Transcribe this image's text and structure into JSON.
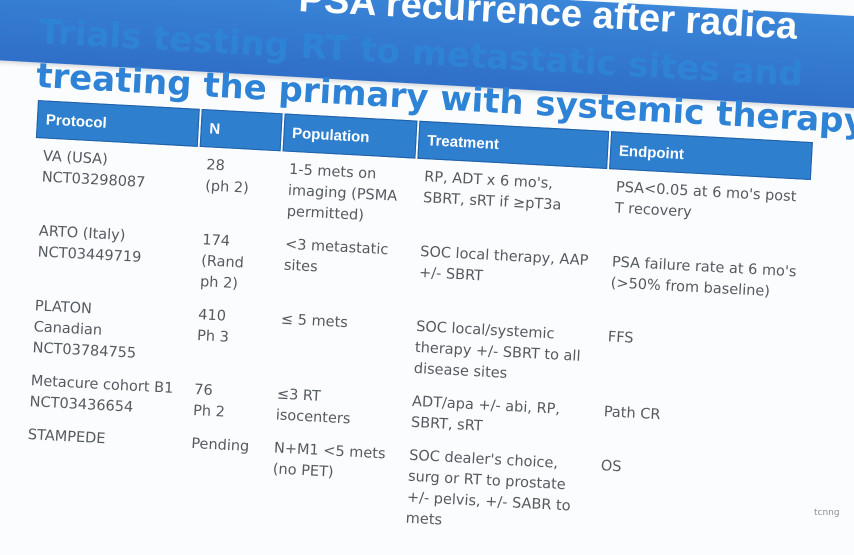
{
  "banner": {
    "text": "PSA recurrence after radica"
  },
  "title": {
    "line1": "Trials testing RT to metastatic sites and",
    "line2": "treating the primary with systemic therapy"
  },
  "table": {
    "headers": [
      "Protocol",
      "N",
      "Population",
      "Treatment",
      "Endpoint"
    ],
    "rows": [
      [
        "VA (USA)\nNCT03298087",
        "28\n(ph 2)",
        "1-5 mets on imaging (PSMA permitted)",
        "RP, ADT x 6 mo's, SBRT, sRT if ≥pT3a",
        "PSA<0.05 at 6 mo's post T recovery"
      ],
      [
        "ARTO (Italy)\nNCT03449719",
        "174\n(Rand\nph 2)",
        "<3 metastatic sites",
        "SOC local therapy, AAP +/- SBRT",
        "PSA failure rate at 6 mo's (>50% from baseline)"
      ],
      [
        "PLATON\nCanadian\nNCT03784755",
        "410\nPh 3",
        "≤ 5 mets",
        "SOC local/systemic therapy +/- SBRT to all disease sites",
        "FFS"
      ],
      [
        "Metacure cohort B1\nNCT03436654",
        "76\nPh 2",
        "≤3 RT isocenters",
        "ADT/apa +/- abi, RP, SBRT, sRT",
        "Path CR"
      ],
      [
        "STAMPEDE",
        "Pending",
        "N+M1 <5 mets (no PET)",
        "SOC dealer's choice, surg or RT to prostate +/- pelvis, +/- SABR to mets",
        "OS"
      ]
    ]
  },
  "watermark": "tcnng",
  "colors": {
    "banner": "#2f6fc8",
    "title": "#2f83d6",
    "header": "#2f7fcf",
    "body_text": "#555a60"
  }
}
